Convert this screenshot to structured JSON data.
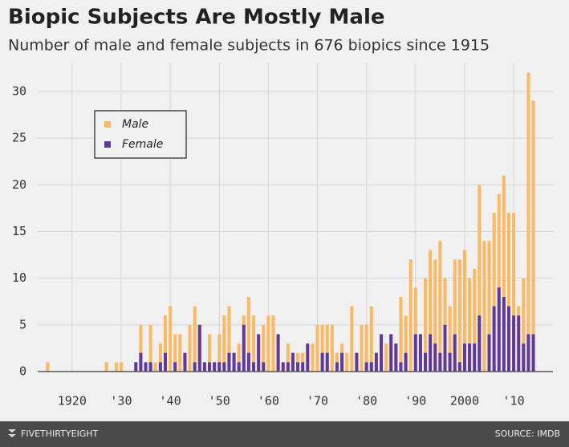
{
  "chart_data": {
    "type": "bar",
    "title": "Biopic Subjects Are Mostly Male",
    "subtitle": "Number of male and female subjects in 676 biopics since 1915",
    "x": [
      1915,
      1916,
      1917,
      1918,
      1919,
      1920,
      1921,
      1922,
      1923,
      1924,
      1925,
      1926,
      1927,
      1928,
      1929,
      1930,
      1931,
      1932,
      1933,
      1934,
      1935,
      1936,
      1937,
      1938,
      1939,
      1940,
      1941,
      1942,
      1943,
      1944,
      1945,
      1946,
      1947,
      1948,
      1949,
      1950,
      1951,
      1952,
      1953,
      1954,
      1955,
      1956,
      1957,
      1958,
      1959,
      1960,
      1961,
      1962,
      1963,
      1964,
      1965,
      1966,
      1967,
      1968,
      1969,
      1970,
      1971,
      1972,
      1973,
      1974,
      1975,
      1976,
      1977,
      1978,
      1979,
      1980,
      1981,
      1982,
      1983,
      1984,
      1985,
      1986,
      1987,
      1988,
      1989,
      1990,
      1991,
      1992,
      1993,
      1994,
      1995,
      1996,
      1997,
      1998,
      1999,
      2000,
      2001,
      2002,
      2003,
      2004,
      2005,
      2006,
      2007,
      2008,
      2009,
      2010,
      2011,
      2012,
      2013,
      2014
    ],
    "series": [
      {
        "name": "Male",
        "color": "#fbb965",
        "values": [
          1,
          0,
          0,
          0,
          0,
          0,
          0,
          0,
          0,
          0,
          0,
          0,
          1,
          0,
          1,
          1,
          0,
          0,
          1,
          5,
          1,
          5,
          1,
          3,
          6,
          7,
          4,
          4,
          2,
          5,
          7,
          5,
          1,
          4,
          1,
          4,
          6,
          7,
          2,
          3,
          6,
          8,
          6,
          4,
          5,
          6,
          6,
          4,
          1,
          3,
          2,
          2,
          2,
          3,
          3,
          5,
          5,
          5,
          5,
          2,
          3,
          2,
          7,
          2,
          5,
          5,
          7,
          2,
          4,
          3,
          4,
          3,
          8,
          6,
          12,
          9,
          4,
          10,
          13,
          12,
          14,
          10,
          7,
          12,
          12,
          13,
          10,
          11,
          20,
          14,
          14,
          17,
          19,
          21,
          17,
          17,
          7,
          10,
          32,
          29
        ]
      },
      {
        "name": "Female",
        "color": "#5f3a99",
        "values": [
          0,
          0,
          0,
          0,
          0,
          0,
          0,
          0,
          0,
          0,
          0,
          0,
          0,
          0,
          0,
          0,
          0,
          0,
          1,
          2,
          1,
          1,
          0,
          1,
          2,
          0,
          1,
          0,
          2,
          0,
          1,
          5,
          1,
          1,
          1,
          1,
          1,
          2,
          2,
          1,
          5,
          2,
          1,
          4,
          1,
          0,
          0,
          4,
          1,
          1,
          2,
          1,
          1,
          3,
          0,
          0,
          2,
          2,
          0,
          1,
          2,
          0,
          0,
          2,
          0,
          1,
          1,
          2,
          4,
          0,
          4,
          3,
          1,
          2,
          0,
          4,
          4,
          2,
          4,
          3,
          2,
          5,
          2,
          4,
          1,
          3,
          3,
          3,
          6,
          0,
          4,
          7,
          9,
          8,
          7,
          6,
          6,
          3,
          4,
          4
        ]
      }
    ],
    "xlim": [
      1913,
      2018
    ],
    "xticks": [
      1920,
      {
        "value": 1930,
        "label": "'30"
      },
      {
        "value": 1940,
        "label": "'40"
      },
      {
        "value": 1950,
        "label": "'50"
      },
      {
        "value": 1960,
        "label": "'60"
      },
      {
        "value": 1970,
        "label": "'70"
      },
      {
        "value": 1980,
        "label": "'80"
      },
      {
        "value": 1990,
        "label": "'90"
      },
      2000,
      {
        "value": 2010,
        "label": "'10"
      }
    ],
    "ylim": [
      0,
      33
    ],
    "yticks": [
      0,
      5,
      10,
      15,
      20,
      25,
      30
    ],
    "grid": true,
    "legend": "upper left"
  },
  "footer": {
    "brand": "FIVETHIRTYEIGHT",
    "source": "SOURCE: IMDB"
  }
}
